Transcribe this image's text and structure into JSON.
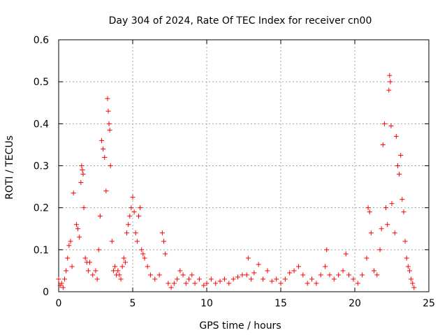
{
  "chart_data": {
    "type": "scatter",
    "title": "Day 304 of 2024, Rate Of TEC Index for receiver cn00",
    "xlabel": "GPS time / hours",
    "ylabel": "ROTI / TECUs",
    "xlim": [
      0,
      25
    ],
    "ylim": [
      0,
      0.6
    ],
    "xticks": [
      "0",
      "5",
      "10",
      "15",
      "20",
      "25"
    ],
    "yticks": [
      "0",
      "0.1",
      "0.2",
      "0.3",
      "0.4",
      "0.5",
      "0.6"
    ],
    "grid": true,
    "marker": "plus",
    "color": "#ff0000",
    "series": [
      {
        "values": [
          [
            0.0,
            0.03
          ],
          [
            0.1,
            0.015
          ],
          [
            0.2,
            0.02
          ],
          [
            0.3,
            0.01
          ],
          [
            0.4,
            0.03
          ],
          [
            0.5,
            0.05
          ],
          [
            0.6,
            0.08
          ],
          [
            0.7,
            0.11
          ],
          [
            0.8,
            0.12
          ],
          [
            0.9,
            0.06
          ],
          [
            1.0,
            0.235
          ],
          [
            1.2,
            0.16
          ],
          [
            1.3,
            0.15
          ],
          [
            1.4,
            0.13
          ],
          [
            1.5,
            0.26
          ],
          [
            1.55,
            0.3
          ],
          [
            1.6,
            0.29
          ],
          [
            1.65,
            0.28
          ],
          [
            1.7,
            0.2
          ],
          [
            1.8,
            0.08
          ],
          [
            1.9,
            0.07
          ],
          [
            2.0,
            0.05
          ],
          [
            2.1,
            0.07
          ],
          [
            2.3,
            0.04
          ],
          [
            2.5,
            0.05
          ],
          [
            2.6,
            0.03
          ],
          [
            2.7,
            0.1
          ],
          [
            2.8,
            0.18
          ],
          [
            2.9,
            0.36
          ],
          [
            3.0,
            0.34
          ],
          [
            3.1,
            0.32
          ],
          [
            3.2,
            0.24
          ],
          [
            3.3,
            0.46
          ],
          [
            3.35,
            0.43
          ],
          [
            3.4,
            0.4
          ],
          [
            3.45,
            0.385
          ],
          [
            3.5,
            0.3
          ],
          [
            3.6,
            0.12
          ],
          [
            3.7,
            0.05
          ],
          [
            3.8,
            0.06
          ],
          [
            3.9,
            0.04
          ],
          [
            4.0,
            0.05
          ],
          [
            4.1,
            0.04
          ],
          [
            4.2,
            0.03
          ],
          [
            4.3,
            0.06
          ],
          [
            4.4,
            0.08
          ],
          [
            4.5,
            0.07
          ],
          [
            4.6,
            0.14
          ],
          [
            4.7,
            0.16
          ],
          [
            4.8,
            0.18
          ],
          [
            4.9,
            0.2
          ],
          [
            5.0,
            0.225
          ],
          [
            5.1,
            0.19
          ],
          [
            5.2,
            0.14
          ],
          [
            5.3,
            0.12
          ],
          [
            5.4,
            0.18
          ],
          [
            5.5,
            0.2
          ],
          [
            5.6,
            0.1
          ],
          [
            5.7,
            0.09
          ],
          [
            5.8,
            0.08
          ],
          [
            6.0,
            0.06
          ],
          [
            6.2,
            0.04
          ],
          [
            6.5,
            0.03
          ],
          [
            6.8,
            0.04
          ],
          [
            7.0,
            0.14
          ],
          [
            7.1,
            0.12
          ],
          [
            7.2,
            0.09
          ],
          [
            7.4,
            0.02
          ],
          [
            7.6,
            0.01
          ],
          [
            7.8,
            0.02
          ],
          [
            8.0,
            0.03
          ],
          [
            8.2,
            0.05
          ],
          [
            8.4,
            0.04
          ],
          [
            8.6,
            0.02
          ],
          [
            8.8,
            0.03
          ],
          [
            9.0,
            0.04
          ],
          [
            9.2,
            0.02
          ],
          [
            9.5,
            0.03
          ],
          [
            9.8,
            0.015
          ],
          [
            10.0,
            0.02
          ],
          [
            10.3,
            0.03
          ],
          [
            10.6,
            0.02
          ],
          [
            10.9,
            0.025
          ],
          [
            11.2,
            0.03
          ],
          [
            11.5,
            0.02
          ],
          [
            11.8,
            0.03
          ],
          [
            12.1,
            0.035
          ],
          [
            12.4,
            0.04
          ],
          [
            12.7,
            0.04
          ],
          [
            12.8,
            0.08
          ],
          [
            13.0,
            0.03
          ],
          [
            13.2,
            0.045
          ],
          [
            13.5,
            0.065
          ],
          [
            13.8,
            0.03
          ],
          [
            14.1,
            0.05
          ],
          [
            14.4,
            0.025
          ],
          [
            14.7,
            0.03
          ],
          [
            15.0,
            0.02
          ],
          [
            15.3,
            0.03
          ],
          [
            15.6,
            0.045
          ],
          [
            15.9,
            0.05
          ],
          [
            16.2,
            0.06
          ],
          [
            16.5,
            0.04
          ],
          [
            16.8,
            0.02
          ],
          [
            17.1,
            0.03
          ],
          [
            17.4,
            0.02
          ],
          [
            17.7,
            0.04
          ],
          [
            18.0,
            0.06
          ],
          [
            18.1,
            0.1
          ],
          [
            18.3,
            0.04
          ],
          [
            18.6,
            0.03
          ],
          [
            18.9,
            0.04
          ],
          [
            19.2,
            0.05
          ],
          [
            19.4,
            0.09
          ],
          [
            19.6,
            0.04
          ],
          [
            19.9,
            0.03
          ],
          [
            20.2,
            0.02
          ],
          [
            20.5,
            0.04
          ],
          [
            20.8,
            0.08
          ],
          [
            20.9,
            0.2
          ],
          [
            21.0,
            0.19
          ],
          [
            21.1,
            0.14
          ],
          [
            21.3,
            0.05
          ],
          [
            21.5,
            0.04
          ],
          [
            21.7,
            0.1
          ],
          [
            21.8,
            0.15
          ],
          [
            21.9,
            0.35
          ],
          [
            22.0,
            0.4
          ],
          [
            22.1,
            0.2
          ],
          [
            22.2,
            0.16
          ],
          [
            22.3,
            0.48
          ],
          [
            22.35,
            0.515
          ],
          [
            22.4,
            0.5
          ],
          [
            22.45,
            0.395
          ],
          [
            22.5,
            0.21
          ],
          [
            22.7,
            0.14
          ],
          [
            22.8,
            0.37
          ],
          [
            22.9,
            0.3
          ],
          [
            23.0,
            0.28
          ],
          [
            23.1,
            0.325
          ],
          [
            23.2,
            0.22
          ],
          [
            23.3,
            0.19
          ],
          [
            23.4,
            0.12
          ],
          [
            23.5,
            0.08
          ],
          [
            23.6,
            0.06
          ],
          [
            23.7,
            0.05
          ],
          [
            23.8,
            0.03
          ],
          [
            23.9,
            0.02
          ],
          [
            24.0,
            0.01
          ]
        ]
      }
    ]
  }
}
